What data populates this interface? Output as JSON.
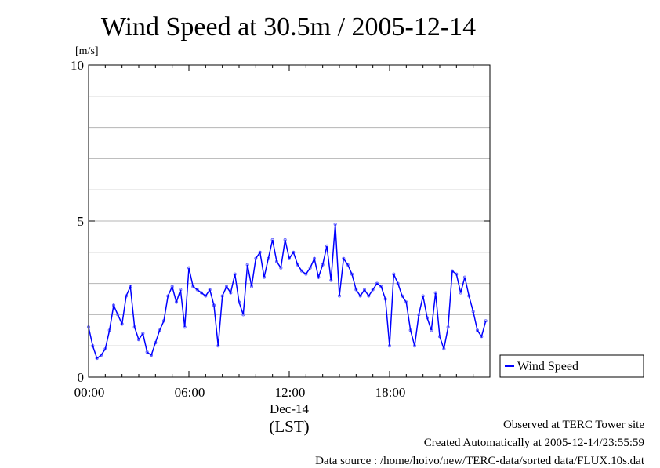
{
  "chart_data": {
    "type": "scatter",
    "title": "Wind Speed at 30.5m / 2005-12-14",
    "ylabel": "[m/s]",
    "ylim": [
      0,
      10
    ],
    "xlim": [
      0,
      24
    ],
    "yticks": [
      0,
      5,
      10
    ],
    "xticks": [
      0,
      6,
      12,
      18
    ],
    "xtick_labels": [
      "00:00",
      "06:00",
      "12:00",
      "18:00"
    ],
    "date_label": "Dec-14",
    "xlabel": "(LST)",
    "grid": true,
    "legend": {
      "position": "right",
      "entries": [
        "Wind Speed"
      ]
    },
    "series": [
      {
        "name": "Wind Speed",
        "color": "#0000ff",
        "point_color": "#6666ff",
        "x": [
          0.0,
          0.25,
          0.5,
          0.75,
          1.0,
          1.25,
          1.5,
          1.75,
          2.0,
          2.25,
          2.5,
          2.75,
          3.0,
          3.25,
          3.5,
          3.75,
          4.0,
          4.25,
          4.5,
          4.75,
          5.0,
          5.25,
          5.5,
          5.75,
          6.0,
          6.25,
          6.5,
          6.75,
          7.0,
          7.25,
          7.5,
          7.75,
          8.0,
          8.25,
          8.5,
          8.75,
          9.0,
          9.25,
          9.5,
          9.75,
          10.0,
          10.25,
          10.5,
          10.75,
          11.0,
          11.25,
          11.5,
          11.75,
          12.0,
          12.25,
          12.5,
          12.75,
          13.0,
          13.25,
          13.5,
          13.75,
          14.0,
          14.25,
          14.5,
          14.75,
          15.0,
          15.25,
          15.5,
          15.75,
          16.0,
          16.25,
          16.5,
          16.75,
          17.0,
          17.25,
          17.5,
          17.75,
          18.0,
          18.25,
          18.5,
          18.75,
          19.0,
          19.25,
          19.5,
          19.75,
          20.0,
          20.25,
          20.5,
          20.75,
          21.0,
          21.25,
          21.5,
          21.75,
          22.0,
          22.25,
          22.5,
          22.75,
          23.0,
          23.25,
          23.5,
          23.75
        ],
        "y": [
          1.6,
          1.0,
          0.6,
          0.7,
          0.9,
          1.5,
          2.3,
          2.0,
          1.7,
          2.6,
          2.9,
          1.6,
          1.2,
          1.4,
          0.8,
          0.7,
          1.1,
          1.5,
          1.8,
          2.6,
          2.9,
          2.4,
          2.8,
          1.6,
          3.5,
          2.9,
          2.8,
          2.7,
          2.6,
          2.8,
          2.3,
          1.0,
          2.6,
          2.9,
          2.7,
          3.3,
          2.4,
          2.0,
          3.6,
          2.9,
          3.8,
          4.0,
          3.2,
          3.8,
          4.4,
          3.7,
          3.5,
          4.4,
          3.8,
          4.0,
          3.6,
          3.4,
          3.3,
          3.5,
          3.8,
          3.2,
          3.6,
          4.2,
          3.1,
          4.9,
          2.6,
          3.8,
          3.6,
          3.3,
          2.8,
          2.6,
          2.8,
          2.6,
          2.8,
          3.0,
          2.9,
          2.5,
          1.0,
          3.3,
          3.0,
          2.6,
          2.4,
          1.5,
          1.0,
          2.0,
          2.6,
          1.9,
          1.5,
          2.7,
          1.3,
          0.9,
          1.6,
          3.4,
          3.3,
          2.7,
          3.2,
          2.6,
          2.1,
          1.5,
          1.3,
          1.8
        ]
      }
    ]
  },
  "footer": {
    "site": "Observed at TERC Tower site",
    "created": "Created Automatically at 2005-12-14/23:55:59",
    "source": "Data source : /home/hoivo/new/TERC-data/sorted  data/FLUX.10s.dat"
  }
}
